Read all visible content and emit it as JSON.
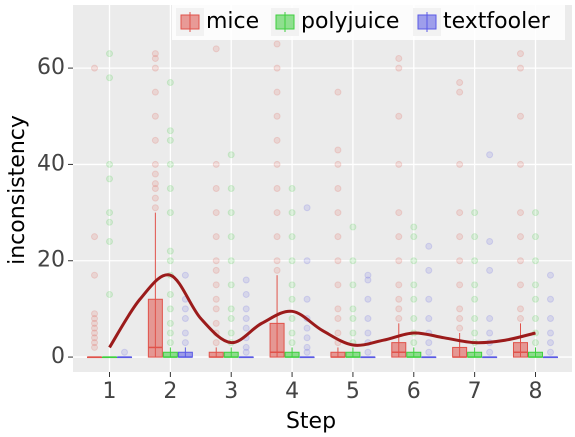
{
  "chart_data": {
    "type": "box",
    "x_label": "Step",
    "y_label": "inconsistency",
    "categories": [
      "1",
      "2",
      "3",
      "4",
      "5",
      "6",
      "7",
      "8"
    ],
    "ylim": [
      -3.1,
      73.1
    ],
    "yticks": [
      0,
      20,
      40,
      60
    ],
    "grid": true,
    "legend_position": "top",
    "series": [
      {
        "name": "mice",
        "color": "#e0524a",
        "boxes": [
          {
            "low": 0,
            "q1": 0,
            "median": 0,
            "q3": 0,
            "high": 0,
            "outliers": [
              2,
              3,
              4,
              5,
              6,
              7,
              8,
              9,
              17,
              25,
              60
            ]
          },
          {
            "low": 0,
            "q1": 0,
            "median": 2,
            "q3": 12,
            "high": 30,
            "outliers": [
              31,
              33,
              35,
              36,
              38,
              40,
              45,
              50,
              55,
              60,
              62,
              63
            ]
          },
          {
            "low": 0,
            "q1": 0,
            "median": 0,
            "q3": 1,
            "high": 2,
            "outliers": [
              3,
              5,
              7,
              10,
              12,
              15,
              18,
              20,
              25,
              30,
              35,
              40,
              64
            ]
          },
          {
            "low": 0,
            "q1": 0,
            "median": 1,
            "q3": 7,
            "high": 17,
            "outliers": [
              18,
              20,
              25,
              30,
              35,
              40,
              45,
              50,
              55,
              60,
              65
            ]
          },
          {
            "low": 0,
            "q1": 0,
            "median": 0,
            "q3": 1,
            "high": 2,
            "outliers": [
              3,
              5,
              8,
              10,
              15,
              20,
              25,
              30,
              35,
              40,
              43,
              55
            ]
          },
          {
            "low": 0,
            "q1": 0,
            "median": 1,
            "q3": 3,
            "high": 7,
            "outliers": [
              8,
              10,
              12,
              15,
              20,
              25,
              30,
              40,
              50,
              60,
              62
            ]
          },
          {
            "low": 0,
            "q1": 0,
            "median": 0,
            "q3": 2,
            "high": 5,
            "outliers": [
              6,
              8,
              10,
              15,
              20,
              25,
              30,
              40,
              55,
              57
            ]
          },
          {
            "low": 0,
            "q1": 0,
            "median": 1,
            "q3": 3,
            "high": 7,
            "outliers": [
              8,
              10,
              15,
              20,
              25,
              30,
              40,
              50,
              60,
              63
            ]
          }
        ]
      },
      {
        "name": "polyjuice",
        "color": "#3ecf3e",
        "boxes": [
          {
            "low": 0,
            "q1": 0,
            "median": 0,
            "q3": 0,
            "high": 0,
            "outliers": [
              13,
              24,
              28,
              30,
              37,
              40,
              58,
              63
            ]
          },
          {
            "low": 0,
            "q1": 0,
            "median": 0,
            "q3": 1,
            "high": 2,
            "outliers": [
              3,
              5,
              7,
              10,
              13,
              17,
              20,
              22,
              30,
              35,
              40,
              45,
              47,
              57
            ]
          },
          {
            "low": 0,
            "q1": 0,
            "median": 0,
            "q3": 1,
            "high": 2,
            "outliers": [
              3,
              5,
              8,
              10,
              15,
              20,
              25,
              30,
              35,
              42
            ]
          },
          {
            "low": 0,
            "q1": 0,
            "median": 0,
            "q3": 1,
            "high": 2,
            "outliers": [
              3,
              5,
              8,
              12,
              15,
              20,
              25,
              30,
              35
            ]
          },
          {
            "low": 0,
            "q1": 0,
            "median": 0,
            "q3": 1,
            "high": 2,
            "outliers": [
              3,
              5,
              8,
              10,
              15,
              20,
              27
            ]
          },
          {
            "low": 0,
            "q1": 0,
            "median": 0,
            "q3": 1,
            "high": 2,
            "outliers": [
              3,
              5,
              8,
              12,
              15,
              20,
              25,
              27
            ]
          },
          {
            "low": 0,
            "q1": 0,
            "median": 0,
            "q3": 1,
            "high": 2,
            "outliers": [
              3,
              5,
              8,
              12,
              15,
              20,
              25,
              30
            ]
          },
          {
            "low": 0,
            "q1": 0,
            "median": 0,
            "q3": 1,
            "high": 2,
            "outliers": [
              3,
              5,
              8,
              12,
              15,
              20,
              25,
              30
            ]
          }
        ]
      },
      {
        "name": "textfooler",
        "color": "#5a5ae6",
        "boxes": [
          {
            "low": 0,
            "q1": 0,
            "median": 0,
            "q3": 0,
            "high": 0,
            "outliers": [
              1
            ]
          },
          {
            "low": 0,
            "q1": 0,
            "median": 0,
            "q3": 1,
            "high": 2,
            "outliers": [
              3,
              5,
              8,
              10,
              12,
              17
            ]
          },
          {
            "low": 0,
            "q1": 0,
            "median": 0,
            "q3": 0,
            "high": 0,
            "outliers": [
              1,
              2,
              4,
              6,
              8,
              10,
              13,
              16
            ]
          },
          {
            "low": 0,
            "q1": 0,
            "median": 0,
            "q3": 0,
            "high": 0,
            "outliers": [
              1,
              2,
              4,
              6,
              8,
              12,
              20,
              31
            ]
          },
          {
            "low": 0,
            "q1": 0,
            "median": 0,
            "q3": 0,
            "high": 0,
            "outliers": [
              1,
              3,
              5,
              8,
              12,
              16,
              17
            ]
          },
          {
            "low": 0,
            "q1": 0,
            "median": 0,
            "q3": 0,
            "high": 0,
            "outliers": [
              1,
              3,
              5,
              8,
              12,
              18,
              23
            ]
          },
          {
            "low": 0,
            "q1": 0,
            "median": 0,
            "q3": 0,
            "high": 0,
            "outliers": [
              1,
              3,
              5,
              8,
              18,
              24,
              42
            ]
          },
          {
            "low": 0,
            "q1": 0,
            "median": 0,
            "q3": 0,
            "high": 0,
            "outliers": [
              1,
              3,
              5,
              8,
              12,
              17
            ]
          }
        ]
      }
    ],
    "trend": {
      "color": "#9b1b1b",
      "x": [
        1,
        1.5,
        2,
        2.5,
        3,
        3.5,
        4,
        4.5,
        5,
        5.5,
        6,
        6.5,
        7,
        7.5,
        8
      ],
      "values": [
        2,
        12,
        17,
        8,
        3,
        7,
        9.5,
        5.5,
        2.5,
        3.5,
        5,
        4,
        3,
        3.5,
        5
      ]
    }
  }
}
